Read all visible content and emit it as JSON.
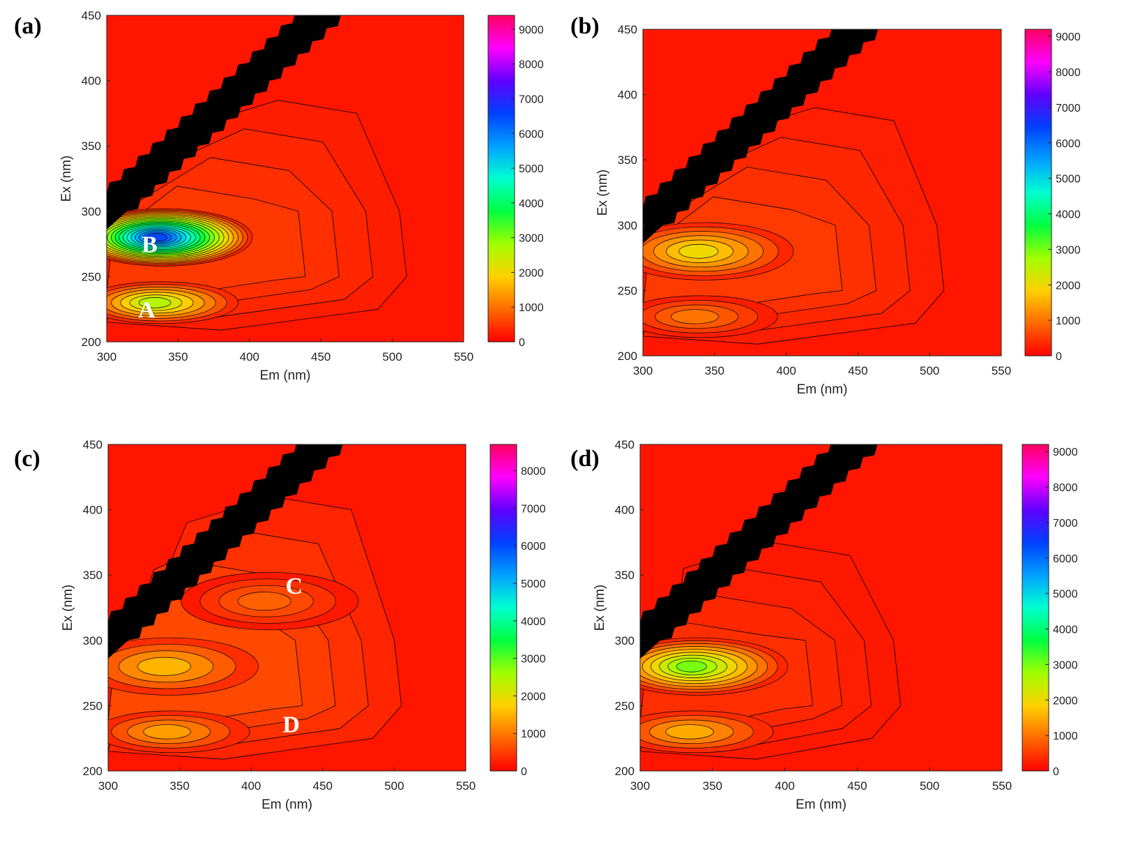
{
  "figure": {
    "description_type": "multi-panel EEM fluorescence contour plots"
  },
  "colors": {
    "background_contour": "#ff1a1a",
    "contour_line": "#000000",
    "scatter_band": "#000000",
    "colormap": [
      "#ff0000",
      "#ff6a00",
      "#ffd000",
      "#a0ff00",
      "#00ff40",
      "#00ffd0",
      "#00a0ff",
      "#0040ff",
      "#6000ff",
      "#ff00ff",
      "#ff0060"
    ]
  },
  "chart_data": [
    {
      "type": "heatmap",
      "panel_label": "(a)",
      "xlabel": "Em (nm)",
      "ylabel": "Ex (nm)",
      "xlim": [
        300,
        550
      ],
      "ylim": [
        200,
        450
      ],
      "xticks": [
        "300",
        "350",
        "400",
        "450",
        "500",
        "550"
      ],
      "yticks": [
        "200",
        "250",
        "300",
        "350",
        "400",
        "450"
      ],
      "colorbar": {
        "min": 0,
        "max": 9400,
        "ticks": [
          "0",
          "1000",
          "2000",
          "3000",
          "4000",
          "5000",
          "6000",
          "7000",
          "8000",
          "9000"
        ]
      },
      "peaks": [
        {
          "label": "B",
          "em": 335,
          "ex": 280,
          "intensity": 6500
        },
        {
          "label": "A",
          "em": 333,
          "ex": 230,
          "intensity": 2600
        }
      ],
      "humic_extent": {
        "em_max": 510,
        "ex_max": 385,
        "intensity": 500
      }
    },
    {
      "type": "heatmap",
      "panel_label": "(b)",
      "xlabel": "Em (nm)",
      "ylabel": "Ex (nm)",
      "xlim": [
        300,
        550
      ],
      "ylim": [
        200,
        450
      ],
      "xticks": [
        "300",
        "350",
        "400",
        "450",
        "500",
        "550"
      ],
      "yticks": [
        "200",
        "250",
        "300",
        "350",
        "400",
        "450"
      ],
      "colorbar": {
        "min": 0,
        "max": 9200,
        "ticks": [
          "0",
          "1000",
          "2000",
          "3000",
          "4000",
          "5000",
          "6000",
          "7000",
          "8000",
          "9000"
        ]
      },
      "peaks": [
        {
          "label": "",
          "em": 338,
          "ex": 280,
          "intensity": 2000
        },
        {
          "label": "",
          "em": 335,
          "ex": 230,
          "intensity": 1000
        }
      ],
      "humic_extent": {
        "em_max": 510,
        "ex_max": 390,
        "intensity": 500
      }
    },
    {
      "type": "heatmap",
      "panel_label": "(c)",
      "xlabel": "Em (nm)",
      "ylabel": "Ex (nm)",
      "xlim": [
        300,
        550
      ],
      "ylim": [
        200,
        450
      ],
      "xticks": [
        "300",
        "350",
        "400",
        "450",
        "500",
        "550"
      ],
      "yticks": [
        "200",
        "250",
        "300",
        "350",
        "400",
        "450"
      ],
      "colorbar": {
        "min": 0,
        "max": 8700,
        "ticks": [
          "0",
          "1000",
          "2000",
          "3000",
          "4000",
          "5000",
          "6000",
          "7000",
          "8000"
        ]
      },
      "peaks": [
        {
          "label": "",
          "em": 338,
          "ex": 280,
          "intensity": 1500
        },
        {
          "label": "D",
          "em": 340,
          "ex": 230,
          "intensity": 1300
        },
        {
          "label": "C",
          "em": 408,
          "ex": 330,
          "intensity": 800
        }
      ],
      "annotation_positions": [
        {
          "label": "C",
          "em": 430,
          "ex": 342
        },
        {
          "label": "D",
          "em": 428,
          "ex": 236
        }
      ],
      "humic_extent": {
        "em_max": 505,
        "ex_max": 410,
        "intensity": 600
      }
    },
    {
      "type": "heatmap",
      "panel_label": "(d)",
      "xlabel": "Em (nm)",
      "ylabel": "Ex (nm)",
      "xlim": [
        300,
        550
      ],
      "ylim": [
        200,
        450
      ],
      "xticks": [
        "300",
        "350",
        "400",
        "450",
        "500",
        "550"
      ],
      "yticks": [
        "200",
        "250",
        "300",
        "350",
        "400",
        "450"
      ],
      "colorbar": {
        "min": 0,
        "max": 9200,
        "ticks": [
          "0",
          "1000",
          "2000",
          "3000",
          "4000",
          "5000",
          "6000",
          "7000",
          "8000",
          "9000"
        ]
      },
      "peaks": [
        {
          "label": "",
          "em": 335,
          "ex": 280,
          "intensity": 3000
        },
        {
          "label": "",
          "em": 333,
          "ex": 230,
          "intensity": 1500
        }
      ],
      "humic_extent": {
        "em_max": 480,
        "ex_max": 375,
        "intensity": 400
      }
    }
  ]
}
